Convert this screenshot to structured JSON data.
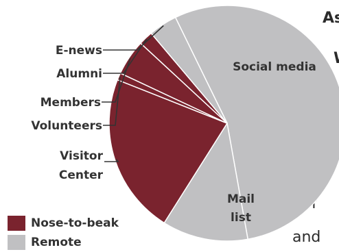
{
  "chart_data": {
    "type": "pie",
    "slices": [
      {
        "label": "Social media",
        "value": 55.5,
        "group": "Remote"
      },
      {
        "label": "Mail list",
        "value": 12.0,
        "group": "Remote"
      },
      {
        "label": "Visitor Center",
        "value": 22.5,
        "group": "Nose-to-beak"
      },
      {
        "label": "Volunteers",
        "value": 1.0,
        "group": "Nose-to-beak"
      },
      {
        "label": "Members",
        "value": 5.0,
        "group": "Nose-to-beak"
      },
      {
        "label": "Alumni",
        "value": 2.0,
        "group": "Nose-to-beak"
      },
      {
        "label": "E-news",
        "value": 4.0,
        "group": "Remote"
      }
    ],
    "legend": [
      {
        "name": "Nose-to-beak",
        "color": "#7a232e"
      },
      {
        "name": "Remote",
        "color": "#c0c0c2"
      }
    ],
    "legend_position": "bottom-left",
    "colors": {
      "Nose-to-beak": "#7a232e",
      "Remote": "#c0c0c2"
    }
  },
  "background_text": {
    "line1": "As",
    "line2": "W",
    "line3": "f",
    "line4": "and"
  }
}
